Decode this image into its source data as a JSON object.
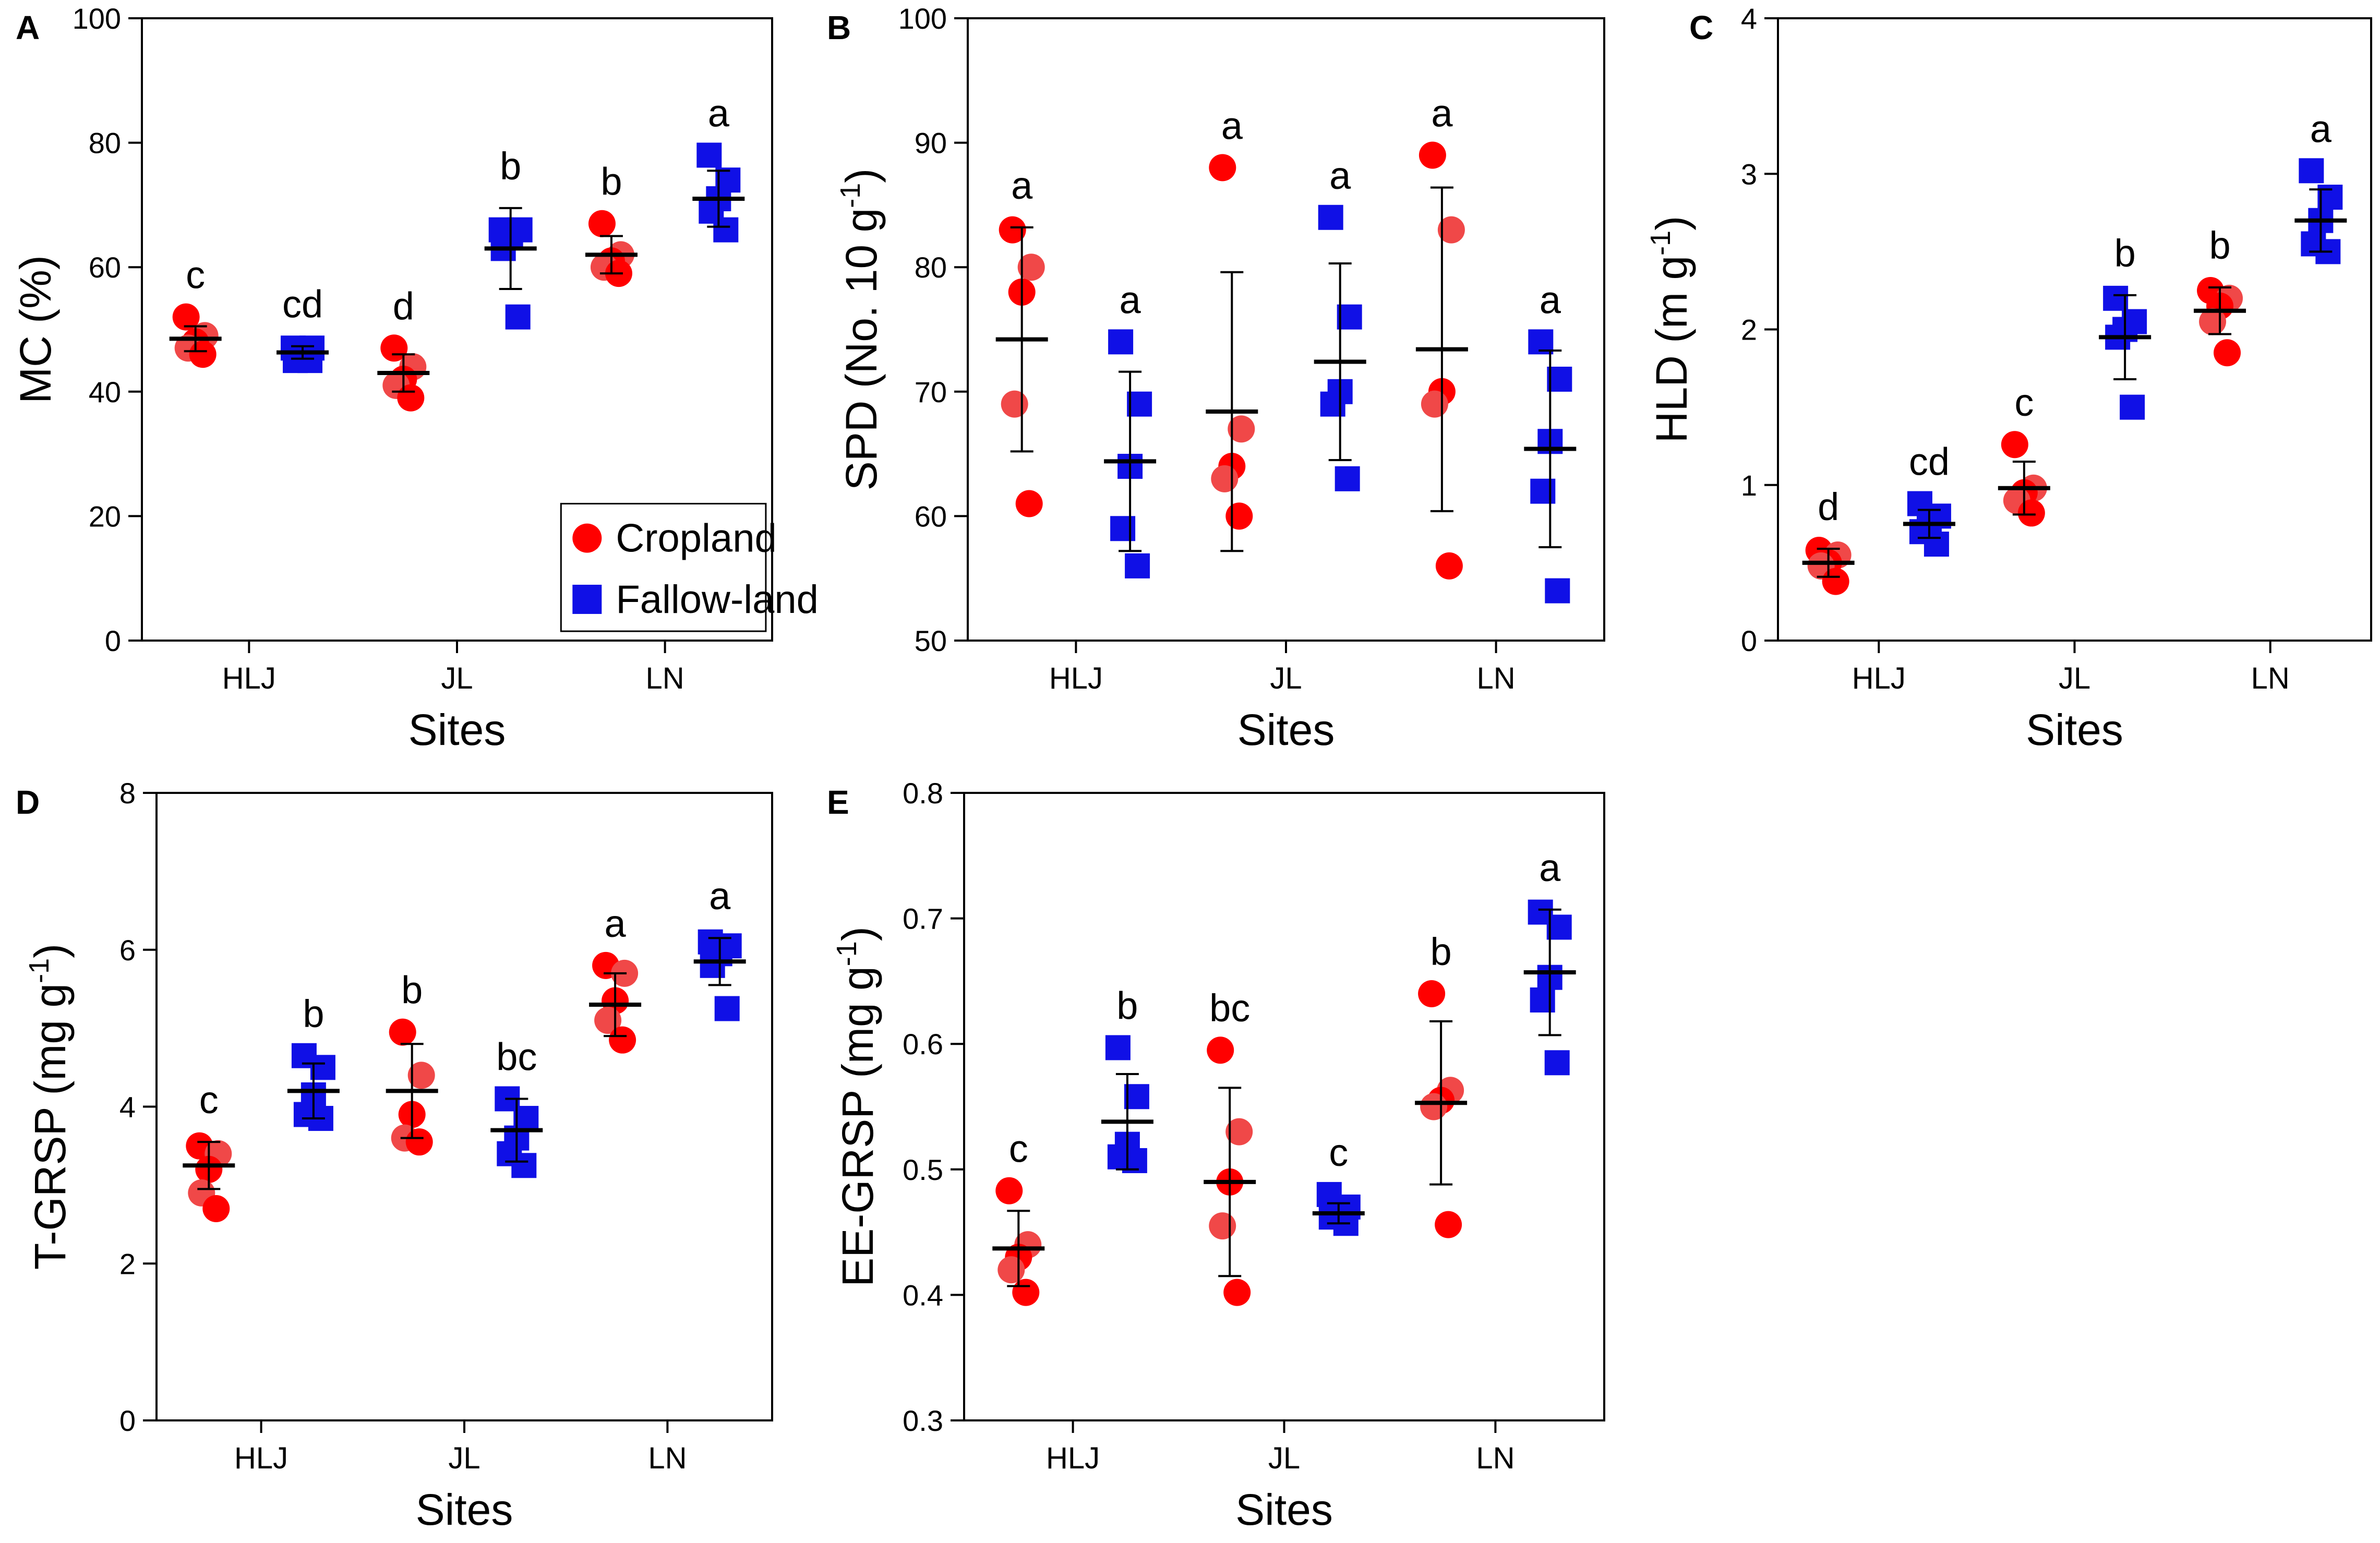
{
  "colors": {
    "cropland": "#ff0000",
    "cropland_light": "#f04848",
    "fallow": "#1010e6",
    "axis": "#000000",
    "mean_bar": "#000000"
  },
  "chart_data": [
    {
      "panel_label": "A",
      "type": "scatter",
      "ylabel": "MC (%)",
      "xlabel": "Sites",
      "ylim": [
        0,
        100
      ],
      "yticks": [
        "0",
        "20",
        "40",
        "60",
        "80",
        "100"
      ],
      "categories": [
        "HLJ",
        "JL",
        "LN"
      ],
      "legend": {
        "position": "bottom-right",
        "entries": [
          {
            "name": "Cropland",
            "marker": "circle"
          },
          {
            "name": "Fallow-land",
            "marker": "square"
          }
        ]
      },
      "series": [
        {
          "name": "Cropland",
          "marker": "circle",
          "points": [
            [
              52,
              49,
              48,
              47,
              46
            ],
            [
              47,
              44,
              42,
              41,
              39
            ],
            [
              67,
              62,
              61,
              60,
              59
            ]
          ],
          "mean": [
            48.5,
            43,
            62
          ],
          "sd": [
            2,
            3,
            3
          ],
          "letters": [
            "c",
            "d",
            "b"
          ]
        },
        {
          "name": "Fallow-land",
          "marker": "square",
          "points": [
            [
              47,
              47,
              46,
              45,
              45
            ],
            [
              66,
              66,
              65,
              63,
              52
            ],
            [
              78,
              74,
              71,
              69,
              66
            ]
          ],
          "mean": [
            46.3,
            63,
            71
          ],
          "sd": [
            1,
            6.5,
            4.5
          ],
          "letters": [
            "cd",
            "b",
            "a"
          ]
        }
      ]
    },
    {
      "panel_label": "B",
      "type": "scatter",
      "ylabel": "SPD (No. 10 g",
      "ylabel_sup": "-1",
      "ylabel_end": ")",
      "xlabel": "Sites",
      "ylim": [
        50,
        100
      ],
      "yticks": [
        "50",
        "60",
        "70",
        "80",
        "90",
        "100"
      ],
      "categories": [
        "HLJ",
        "JL",
        "LN"
      ],
      "series": [
        {
          "name": "Cropland",
          "marker": "circle",
          "points": [
            [
              83,
              80,
              78,
              69,
              61
            ],
            [
              88,
              67,
              64,
              63,
              60
            ],
            [
              89,
              83,
              70,
              69,
              56
            ]
          ],
          "mean": [
            74.2,
            68.4,
            73.4
          ],
          "sd": [
            9,
            11.2,
            13
          ],
          "letters": [
            "a",
            "a",
            "a"
          ]
        },
        {
          "name": "Fallow-land",
          "marker": "square",
          "points": [
            [
              74,
              69,
              64,
              59,
              56
            ],
            [
              84,
              76,
              70,
              69,
              63
            ],
            [
              74,
              71,
              66,
              62,
              54
            ]
          ],
          "mean": [
            64.4,
            72.4,
            65.4
          ],
          "sd": [
            7.2,
            7.9,
            7.9
          ],
          "letters": [
            "a",
            "a",
            "a"
          ]
        }
      ]
    },
    {
      "panel_label": "C",
      "type": "scatter",
      "ylabel": "HLD (m g",
      "ylabel_sup": "-1",
      "ylabel_end": ")",
      "xlabel": "Sites",
      "ylim": [
        0,
        4
      ],
      "yticks": [
        "0",
        "1",
        "2",
        "3",
        "4"
      ],
      "categories": [
        "HLJ",
        "JL",
        "LN"
      ],
      "series": [
        {
          "name": "Cropland",
          "marker": "circle",
          "points": [
            [
              0.58,
              0.55,
              0.5,
              0.48,
              0.38
            ],
            [
              1.26,
              0.98,
              0.95,
              0.9,
              0.82
            ],
            [
              2.25,
              2.2,
              2.15,
              2.05,
              1.85
            ]
          ],
          "mean": [
            0.5,
            0.98,
            2.12
          ],
          "sd": [
            0.09,
            0.17,
            0.15
          ],
          "letters": [
            "d",
            "c",
            "b"
          ]
        },
        {
          "name": "Fallow-land",
          "marker": "square",
          "points": [
            [
              0.88,
              0.8,
              0.75,
              0.7,
              0.62
            ],
            [
              2.2,
              2.05,
              2.0,
              1.95,
              1.5
            ],
            [
              3.02,
              2.85,
              2.7,
              2.55,
              2.5
            ]
          ],
          "mean": [
            0.75,
            1.95,
            2.7
          ],
          "sd": [
            0.09,
            0.27,
            0.2
          ],
          "letters": [
            "cd",
            "b",
            "a"
          ]
        }
      ]
    },
    {
      "panel_label": "D",
      "type": "scatter",
      "ylabel": "T-GRSP (mg g",
      "ylabel_sup": "-1",
      "ylabel_end": ")",
      "xlabel": "Sites",
      "ylim": [
        0,
        8
      ],
      "yticks": [
        "0",
        "2",
        "4",
        "6",
        "8"
      ],
      "categories": [
        "HLJ",
        "JL",
        "LN"
      ],
      "series": [
        {
          "name": "Cropland",
          "marker": "circle",
          "points": [
            [
              3.5,
              3.4,
              3.2,
              2.9,
              2.7
            ],
            [
              4.95,
              4.4,
              3.9,
              3.6,
              3.55
            ],
            [
              5.8,
              5.7,
              5.35,
              5.1,
              4.85
            ]
          ],
          "mean": [
            3.25,
            4.2,
            5.3
          ],
          "sd": [
            0.3,
            0.6,
            0.4
          ],
          "letters": [
            "c",
            "b",
            "a"
          ]
        },
        {
          "name": "Fallow-land",
          "marker": "square",
          "points": [
            [
              4.65,
              4.5,
              4.15,
              3.9,
              3.85
            ],
            [
              4.1,
              3.85,
              3.6,
              3.4,
              3.25
            ],
            [
              6.1,
              6.05,
              5.95,
              5.8,
              5.25
            ]
          ],
          "mean": [
            4.2,
            3.7,
            5.85
          ],
          "sd": [
            0.35,
            0.4,
            0.3
          ],
          "letters": [
            "b",
            "bc",
            "a"
          ]
        }
      ]
    },
    {
      "panel_label": "E",
      "type": "scatter",
      "ylabel": "EE-GRSP (mg g",
      "ylabel_sup": "-1",
      "ylabel_end": ")",
      "xlabel": "Sites",
      "ylim": [
        0.3,
        0.8
      ],
      "yticks": [
        "0.3",
        "0.4",
        "0.5",
        "0.6",
        "0.7",
        "0.8"
      ],
      "categories": [
        "HLJ",
        "JL",
        "LN"
      ],
      "series": [
        {
          "name": "Cropland",
          "marker": "circle",
          "points": [
            [
              0.483,
              0.44,
              0.43,
              0.42,
              0.402
            ],
            [
              0.595,
              0.53,
              0.49,
              0.455,
              0.402
            ],
            [
              0.64,
              0.563,
              0.555,
              0.55,
              0.456
            ]
          ],
          "mean": [
            0.437,
            0.49,
            0.553
          ],
          "sd": [
            0.03,
            0.075,
            0.065
          ],
          "letters": [
            "c",
            "bc",
            "b"
          ]
        },
        {
          "name": "Fallow-land",
          "marker": "square",
          "points": [
            [
              0.597,
              0.558,
              0.52,
              0.51,
              0.507
            ],
            [
              0.48,
              0.47,
              0.465,
              0.462,
              0.457
            ],
            [
              0.705,
              0.693,
              0.653,
              0.635,
              0.585
            ]
          ],
          "mean": [
            0.538,
            0.465,
            0.657
          ],
          "sd": [
            0.038,
            0.008,
            0.05
          ],
          "letters": [
            "b",
            "c",
            "a"
          ]
        }
      ]
    }
  ]
}
